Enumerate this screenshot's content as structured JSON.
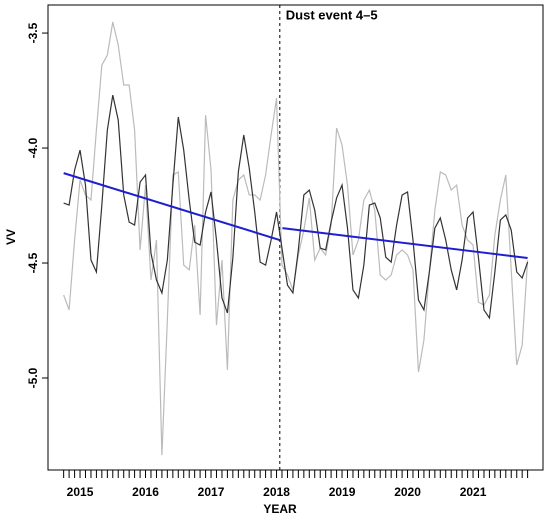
{
  "chart_data": {
    "type": "line",
    "xlabel": "YEAR",
    "ylabel": "VV",
    "x": [
      2014.75,
      2014.833,
      2014.917,
      2015,
      2015.083,
      2015.167,
      2015.25,
      2015.333,
      2015.417,
      2015.5,
      2015.583,
      2015.667,
      2015.75,
      2015.833,
      2015.917,
      2016,
      2016.083,
      2016.167,
      2016.25,
      2016.333,
      2016.417,
      2016.5,
      2016.583,
      2016.667,
      2016.75,
      2016.833,
      2016.917,
      2017,
      2017.083,
      2017.167,
      2017.25,
      2017.333,
      2017.417,
      2017.5,
      2017.583,
      2017.667,
      2017.75,
      2017.833,
      2017.917,
      2018,
      2018.083,
      2018.167,
      2018.25,
      2018.333,
      2018.417,
      2018.5,
      2018.583,
      2018.667,
      2018.75,
      2018.833,
      2018.917,
      2019,
      2019.083,
      2019.167,
      2019.25,
      2019.333,
      2019.417,
      2019.5,
      2019.583,
      2019.667,
      2019.75,
      2019.833,
      2019.917,
      2020,
      2020.083,
      2020.167,
      2020.25,
      2020.333,
      2020.417,
      2020.5,
      2020.583,
      2020.667,
      2020.75,
      2020.833,
      2020.917,
      2021,
      2021.083,
      2021.167,
      2021.25,
      2021.333,
      2021.417,
      2021.5,
      2021.583,
      2021.667,
      2021.75,
      2021.833
    ],
    "series": [
      {
        "color": "#bbbbbb",
        "values": [
          -4.639,
          -4.704,
          -4.4,
          -4.139,
          -4.204,
          -4.226,
          -3.922,
          -3.639,
          -3.596,
          -3.452,
          -3.552,
          -3.726,
          -3.726,
          -3.922,
          -4.443,
          -4.161,
          -4.574,
          -4.4,
          -5.335,
          -4.748,
          -4.117,
          -4.104,
          -4.509,
          -4.53,
          -4.335,
          -4.726,
          -3.857,
          -4.096,
          -4.77,
          -4.487,
          -4.965,
          -4.226,
          -4.139,
          -4.117,
          -4.204,
          -4.204,
          -4.226,
          -4.117,
          -3.943,
          -3.783,
          -4.509,
          -4.552,
          -4.617,
          -4.465,
          -4.357,
          -4.217,
          -4.487,
          -4.435,
          -4.465,
          -4.335,
          -3.913,
          -3.987,
          -4.161,
          -4.465,
          -4.4,
          -4.226,
          -4.183,
          -4.27,
          -4.552,
          -4.574,
          -4.552,
          -4.465,
          -4.443,
          -4.465,
          -4.53,
          -4.974,
          -4.835,
          -4.539,
          -4.27,
          -4.104,
          -4.117,
          -4.183,
          -4.161,
          -4.335,
          -4.4,
          -4.422,
          -4.67,
          -4.683,
          -4.639,
          -4.378,
          -4.226,
          -4.117,
          -4.53,
          -4.943,
          -4.857,
          -4.487
        ]
      },
      {
        "color": "#333333",
        "values": [
          -4.239,
          -4.248,
          -4.096,
          -4.009,
          -4.161,
          -4.487,
          -4.539,
          -4.248,
          -3.922,
          -3.77,
          -3.878,
          -4.204,
          -4.322,
          -4.335,
          -4.148,
          -4.117,
          -4.457,
          -4.574,
          -4.63,
          -4.487,
          -4.161,
          -3.865,
          -4.009,
          -4.226,
          -4.409,
          -4.422,
          -4.278,
          -4.191,
          -4.4,
          -4.652,
          -4.717,
          -4.478,
          -4.104,
          -3.943,
          -4.087,
          -4.278,
          -4.496,
          -4.509,
          -4.4,
          -4.278,
          -4.435,
          -4.596,
          -4.63,
          -4.443,
          -4.204,
          -4.183,
          -4.27,
          -4.435,
          -4.443,
          -4.322,
          -4.217,
          -4.161,
          -4.348,
          -4.617,
          -4.652,
          -4.509,
          -4.248,
          -4.239,
          -4.304,
          -4.474,
          -4.496,
          -4.335,
          -4.204,
          -4.191,
          -4.4,
          -4.661,
          -4.704,
          -4.539,
          -4.348,
          -4.304,
          -4.4,
          -4.53,
          -4.617,
          -4.487,
          -4.304,
          -4.278,
          -4.478,
          -4.704,
          -4.739,
          -4.539,
          -4.313,
          -4.291,
          -4.357,
          -4.539,
          -4.565,
          -4.496
        ]
      },
      {
        "color": "#1f1fd0",
        "x": [
          2014.75,
          2018.05,
          2018.07,
          2018.09,
          2021.833
        ],
        "values": [
          -4.109,
          -4.4,
          null,
          -4.348,
          -4.478
        ]
      }
    ],
    "annotation": {
      "x": 2018.05,
      "text": "Dust event 4–5"
    },
    "xlim": [
      2014.511,
      2022.068
    ],
    "ylim": [
      -5.4,
      -3.378
    ],
    "xticks": [
      2015,
      2016,
      2017,
      2018,
      2019,
      2020,
      2021
    ],
    "yticks": [
      {
        "value": -5,
        "label": "-5.0"
      },
      -4.5,
      {
        "value": -4,
        "label": "-4.0"
      },
      -3.5
    ]
  }
}
